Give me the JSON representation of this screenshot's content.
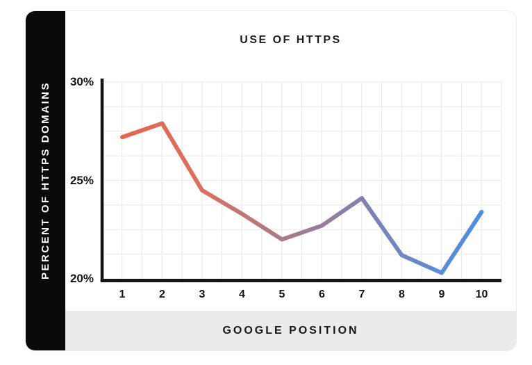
{
  "page": {
    "background": "#ffffff",
    "card_border": "#ececec"
  },
  "chart": {
    "title": "USE OF HTTPS",
    "y_axis_title": "PERCENT OF HTTPS DOMAINS",
    "x_axis_title": "GOOGLE POSITION"
  },
  "colors": {
    "sidebar_bg": "#0a0a0a",
    "sidebar_text": "#ffffff",
    "footer_bg": "#ebebeb",
    "axis": "#141414",
    "grid": "#ececec",
    "title_text": "#1d1d1d",
    "tick_text": "#141414",
    "line_start": "#e3654e",
    "line_end": "#4a90e2"
  },
  "chart_data": {
    "type": "line",
    "title": "USE OF HTTPS",
    "xlabel": "GOOGLE POSITION",
    "ylabel": "PERCENT OF HTTPS DOMAINS",
    "x": [
      1,
      2,
      3,
      4,
      5,
      6,
      7,
      8,
      9,
      10
    ],
    "x_tick_labels": [
      "1",
      "2",
      "3",
      "4",
      "5",
      "6",
      "7",
      "8",
      "9",
      "10"
    ],
    "values": [
      27.2,
      27.9,
      24.5,
      23.3,
      22.0,
      22.7,
      24.1,
      21.2,
      20.3,
      23.4
    ],
    "ylim": [
      20,
      30
    ],
    "y_ticks": [
      {
        "label": "30%",
        "value": 30
      },
      {
        "label": "25%",
        "value": 25
      },
      {
        "label": "20%",
        "value": 20
      }
    ],
    "grid": true,
    "grid_h_divisions": 8,
    "grid_v_divisions": 20,
    "legend": "none",
    "line_gradient_stops": [
      {
        "offset": 0.0,
        "color": "#e3654e"
      },
      {
        "offset": 0.22,
        "color": "#db7060"
      },
      {
        "offset": 0.44,
        "color": "#aa7a86"
      },
      {
        "offset": 0.67,
        "color": "#8381b0"
      },
      {
        "offset": 0.83,
        "color": "#6589cf"
      },
      {
        "offset": 1.0,
        "color": "#4a90e2"
      }
    ]
  }
}
